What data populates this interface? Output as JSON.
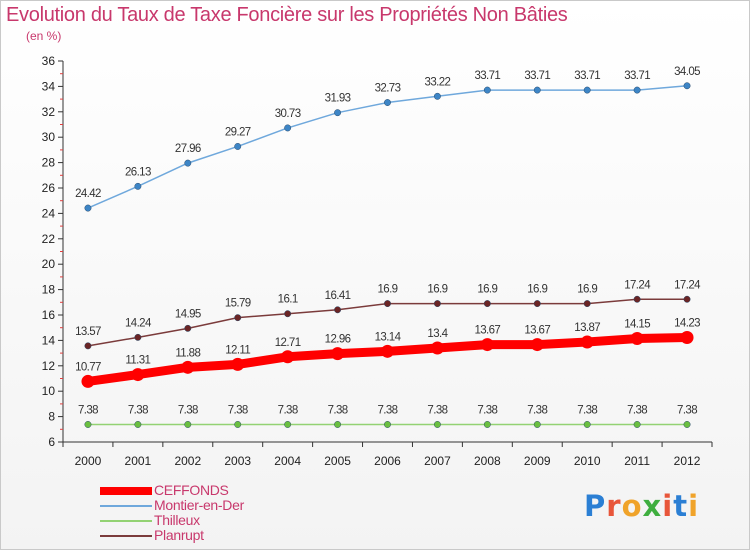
{
  "title": "Evolution du Taux de Taxe Foncière sur les Propriétés Non Bâties",
  "unit": "(en %)",
  "logo": "Proxiti",
  "chart_data": {
    "type": "line",
    "x": [
      "2000",
      "2001",
      "2002",
      "2003",
      "2004",
      "2005",
      "2006",
      "2007",
      "2008",
      "2009",
      "2010",
      "2011",
      "2012"
    ],
    "ylim": [
      6,
      36
    ],
    "yticks": [
      6,
      8,
      10,
      12,
      14,
      16,
      18,
      20,
      22,
      24,
      26,
      28,
      30,
      32,
      34,
      36
    ],
    "grid": false,
    "legend_position": "bottom-left",
    "series": [
      {
        "name": "CEFFONDS",
        "color": "#ff0000",
        "point_color": "#ff0000",
        "thick": true,
        "values": [
          10.77,
          11.31,
          11.88,
          12.11,
          12.71,
          12.96,
          13.14,
          13.4,
          13.67,
          13.67,
          13.87,
          14.15,
          14.23
        ]
      },
      {
        "name": "Montier-en-Der",
        "color": "#6fa8dc",
        "point_color": "#3d85c6",
        "thick": false,
        "values": [
          24.42,
          26.13,
          27.96,
          29.27,
          30.73,
          31.93,
          32.73,
          33.22,
          33.71,
          33.71,
          33.71,
          33.71,
          34.05
        ]
      },
      {
        "name": "Thilleux",
        "color": "#93d273",
        "point_color": "#6abf40",
        "thick": false,
        "values": [
          7.38,
          7.38,
          7.38,
          7.38,
          7.38,
          7.38,
          7.38,
          7.38,
          7.38,
          7.38,
          7.38,
          7.38,
          7.38
        ]
      },
      {
        "name": "Planrupt",
        "color": "#7b3b3b",
        "point_color": "#6b2525",
        "thick": false,
        "values": [
          13.57,
          14.24,
          14.95,
          15.79,
          16.1,
          16.41,
          16.9,
          16.9,
          16.9,
          16.9,
          16.9,
          17.24,
          17.24
        ]
      }
    ]
  }
}
